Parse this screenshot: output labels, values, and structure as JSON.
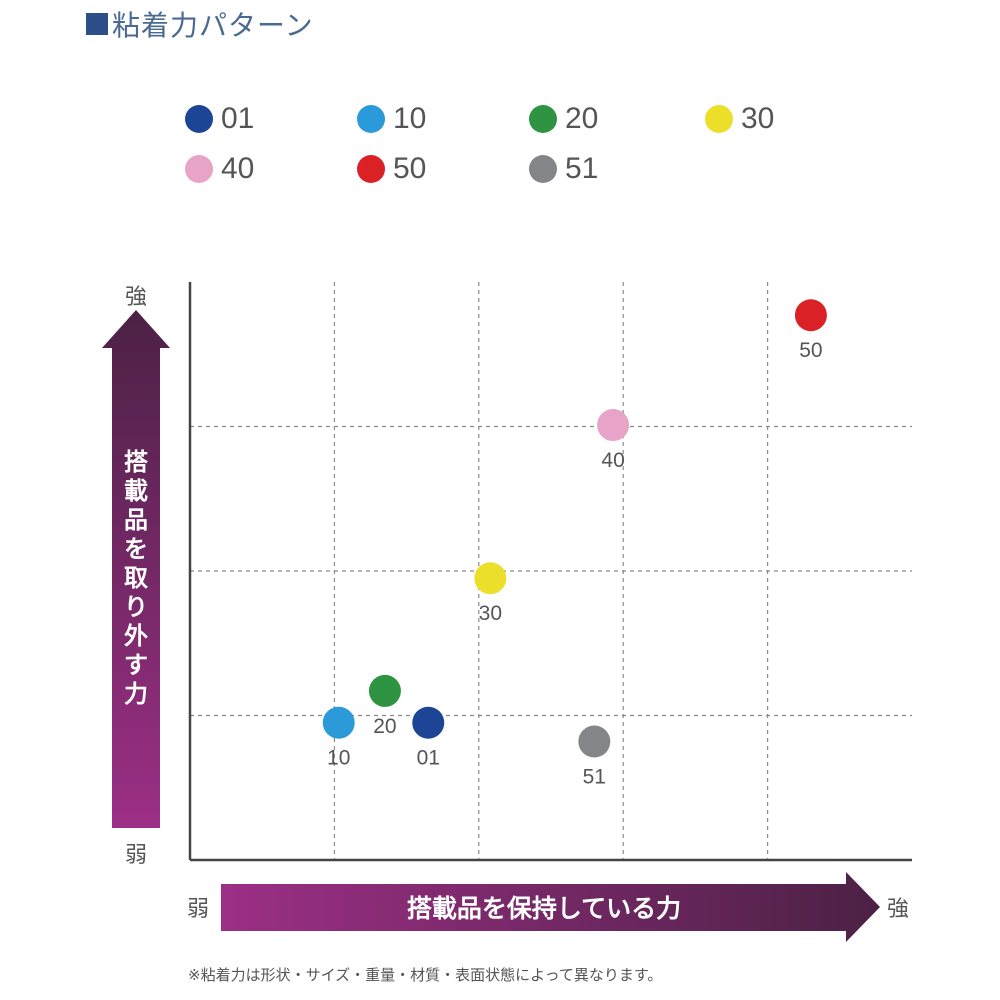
{
  "title": "■粘着力パターン",
  "title_text": "粘着力パターン",
  "footnote": "※粘着力は形状・サイズ・重量・材質・表面状態によって異なります。",
  "chart_data": {
    "type": "scatter",
    "xlabel": "搭載品を保持している力",
    "ylabel": "搭載品を取り外す力",
    "x_low_label": "弱",
    "x_high_label": "強",
    "y_low_label": "弱",
    "y_high_label": "強",
    "xlim": [
      0,
      5
    ],
    "ylim": [
      0,
      4
    ],
    "grid": true,
    "legend_position": "top",
    "points": [
      {
        "label": "01",
        "x": 1.65,
        "y": 0.95,
        "color": "#1d4596"
      },
      {
        "label": "10",
        "x": 1.03,
        "y": 0.95,
        "color": "#2b9ad9"
      },
      {
        "label": "20",
        "x": 1.35,
        "y": 1.17,
        "color": "#2e9441"
      },
      {
        "label": "30",
        "x": 2.08,
        "y": 1.95,
        "color": "#ecdf2a"
      },
      {
        "label": "40",
        "x": 2.93,
        "y": 3.01,
        "color": "#e8a3c8"
      },
      {
        "label": "50",
        "x": 4.3,
        "y": 3.77,
        "color": "#da2226"
      },
      {
        "label": "51",
        "x": 2.8,
        "y": 0.82,
        "color": "#838588"
      }
    ]
  },
  "legend": [
    {
      "label": "01",
      "color": "#1d4596"
    },
    {
      "label": "10",
      "color": "#2b9ad9"
    },
    {
      "label": "20",
      "color": "#2e9441"
    },
    {
      "label": "30",
      "color": "#ecdf2a"
    },
    {
      "label": "40",
      "color": "#e8a3c8"
    },
    {
      "label": "50",
      "color": "#da2226"
    },
    {
      "label": "51",
      "color": "#838588"
    }
  ],
  "colors": {
    "arrow_light": "#9c2f86",
    "arrow_dark": "#4c2145",
    "grid": "#8a8a8a",
    "axis": "#444444"
  }
}
